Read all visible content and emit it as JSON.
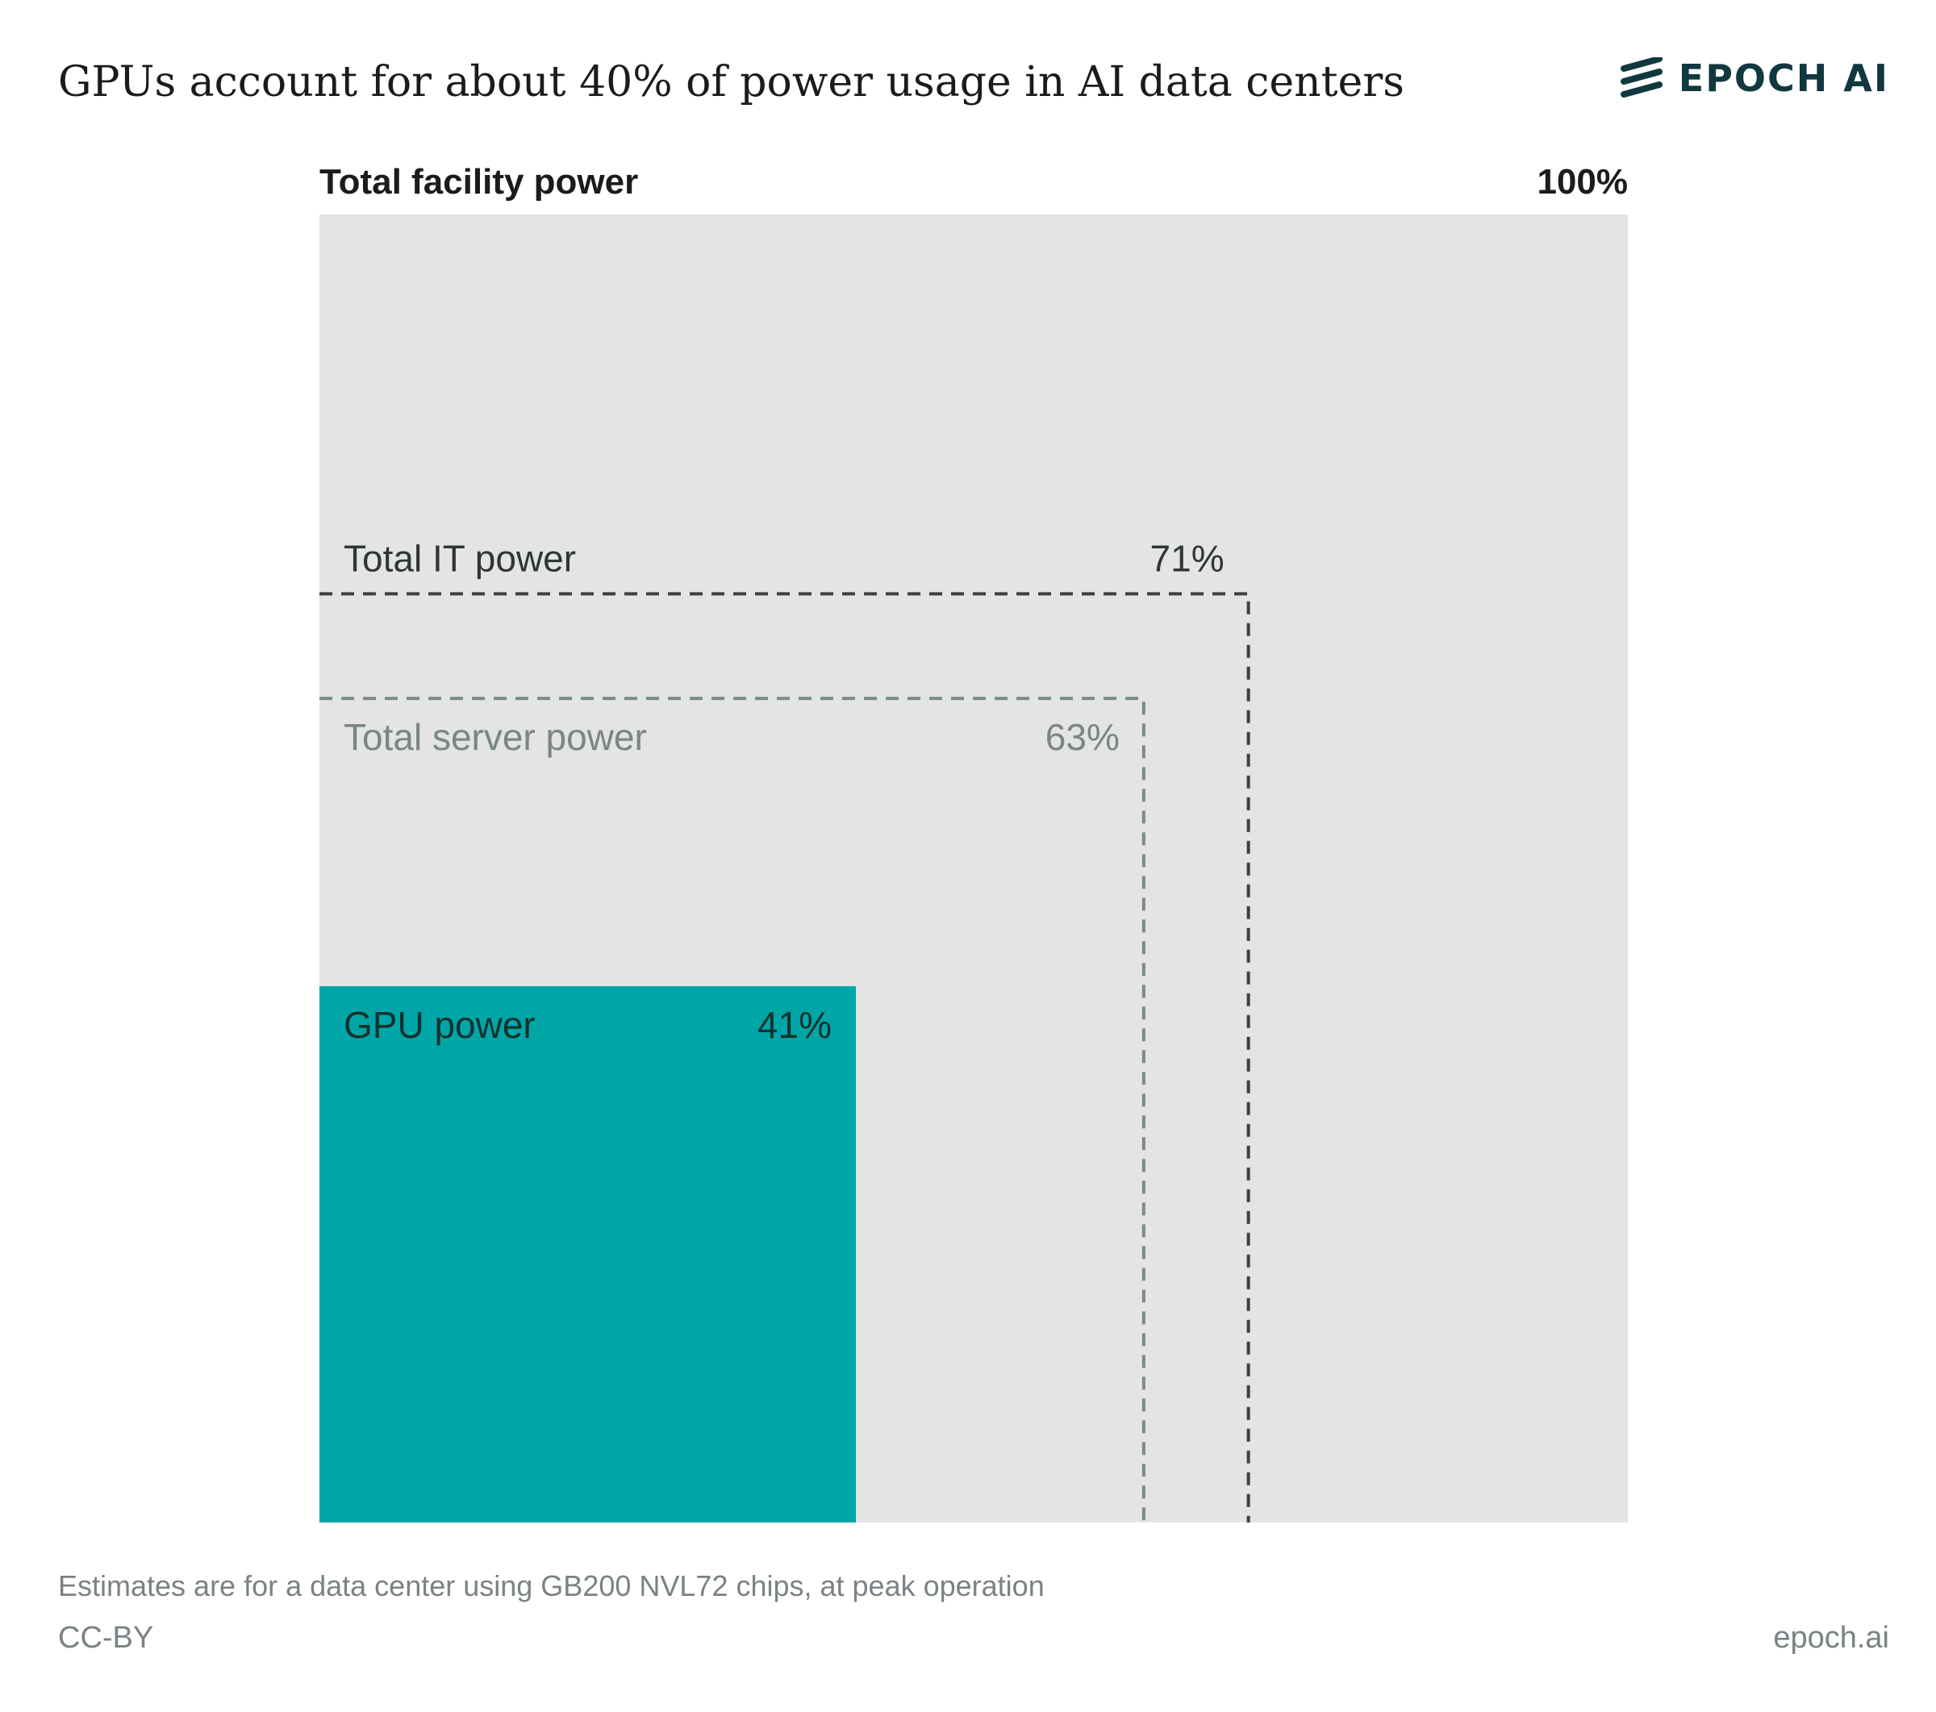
{
  "header": {
    "title": "GPUs account for about 40% of power usage in AI data centers",
    "logo_text": "EPOCH AI",
    "logo_icon": "epoch-stripes-icon"
  },
  "chart_data": {
    "type": "nested-area",
    "title": "GPUs account for about 40% of power usage in AI data centers",
    "unit": "%",
    "levels": [
      {
        "name": "Total facility power",
        "value": 100,
        "value_label": "100%",
        "style": "filled",
        "color": "#e3e4e3",
        "label_color": "#1b1b1b"
      },
      {
        "name": "Total IT power",
        "value": 71,
        "value_label": "71%",
        "style": "dashed",
        "color": "#3b4142",
        "label_color": "#2f3637"
      },
      {
        "name": "Total server power",
        "value": 63,
        "value_label": "63%",
        "style": "dashed",
        "color": "#7c8a89",
        "label_color": "#7a8586"
      },
      {
        "name": "GPU power",
        "value": 41,
        "value_label": "41%",
        "style": "filled",
        "color": "#00a6a6",
        "label_color": "#13312f"
      }
    ]
  },
  "footer": {
    "note": "Estimates are for a data center using GB200 NVL72 chips, at peak operation",
    "license": "CC-BY",
    "site": "epoch.ai"
  }
}
